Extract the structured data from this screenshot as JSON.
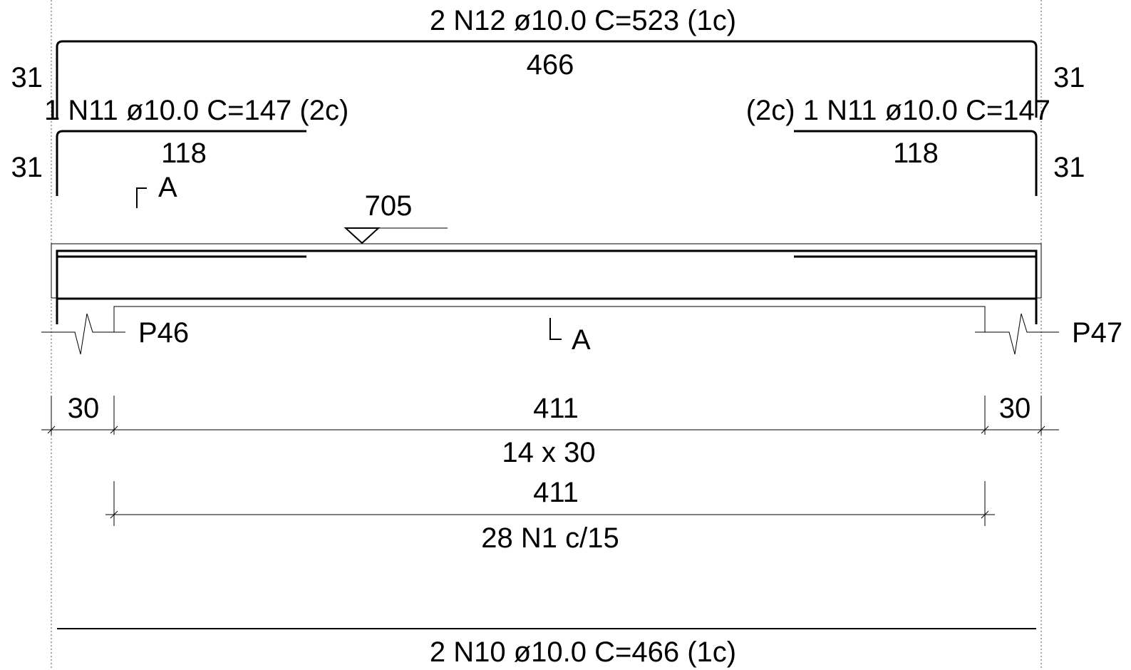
{
  "top_bar": {
    "label": "2 N12 ø10.0 C=523  (1c)",
    "length": "466",
    "hook_left": "31",
    "hook_right": "31"
  },
  "left_bar": {
    "label": "1 N11 ø10.0 C=147  (2c)",
    "length": "118",
    "hook": "31"
  },
  "right_bar": {
    "label": "(2c)  1 N11 ø10.0 C=147",
    "length": "118",
    "hook": "31"
  },
  "section_marks": {
    "top": "A",
    "bottom": "A"
  },
  "level_mark": "705",
  "supports": {
    "left": "P46",
    "right": "P47"
  },
  "dimensions": {
    "left_support": "30",
    "span": "411",
    "right_support": "30",
    "beam_section": "14 x 30"
  },
  "stirrups": {
    "length": "411",
    "label": "28 N1 c/15"
  },
  "bottom_bar": {
    "label": "2 N10 ø10.0 C=466  (1c)"
  }
}
